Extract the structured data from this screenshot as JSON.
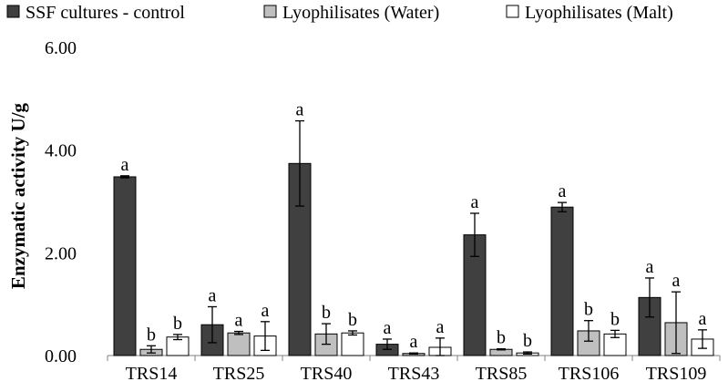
{
  "chart_data": {
    "type": "bar",
    "title": "",
    "xlabel": "",
    "ylabel": "Enzymatic activity U/g",
    "ylim": [
      0,
      6
    ],
    "yticks": [
      "0.00",
      "2.00",
      "4.00",
      "6.00"
    ],
    "ytick_values": [
      0,
      2,
      4,
      6
    ],
    "grid": false,
    "legend_position": "top",
    "categories": [
      "TRS14",
      "TRS25",
      "TRS40",
      "TRS43",
      "TRS85",
      "TRS106",
      "TRS109"
    ],
    "series": [
      {
        "name": "SSF cultures - control",
        "color": "#404040",
        "values": [
          3.48,
          0.6,
          3.74,
          0.22,
          2.35,
          2.89,
          1.13
        ],
        "errors": [
          0.02,
          0.35,
          0.83,
          0.1,
          0.42,
          0.09,
          0.38
        ],
        "labels": [
          "a",
          "a",
          "a",
          "a",
          "a",
          "a",
          "a"
        ]
      },
      {
        "name": "Lyophilisates (Water)",
        "color": "#bfbfbf",
        "values": [
          0.12,
          0.44,
          0.42,
          0.04,
          0.12,
          0.48,
          0.64
        ],
        "errors": [
          0.07,
          0.03,
          0.2,
          0.01,
          0.01,
          0.2,
          0.6
        ],
        "labels": [
          "b",
          "a",
          "b",
          "a",
          "b",
          "b",
          "a"
        ]
      },
      {
        "name": "Lyophilisates (Malt)",
        "color": "#ffffff",
        "values": [
          0.36,
          0.38,
          0.44,
          0.16,
          0.05,
          0.42,
          0.32
        ],
        "errors": [
          0.05,
          0.28,
          0.04,
          0.18,
          0.02,
          0.07,
          0.18
        ],
        "labels": [
          "b",
          "a",
          "b",
          "a",
          "b",
          "b",
          "a"
        ]
      }
    ]
  }
}
